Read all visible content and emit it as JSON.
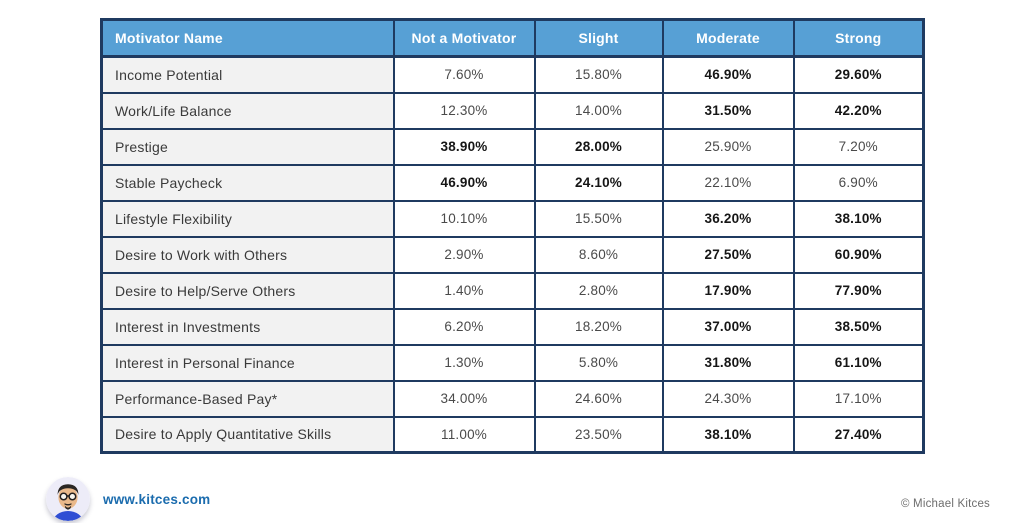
{
  "chart_data": {
    "type": "table",
    "columns": [
      "Motivator Name",
      "Not a Motivator",
      "Slight",
      "Moderate",
      "Strong"
    ],
    "rows": [
      {
        "motivator": "Income Potential",
        "values": [
          "7.60%",
          "15.80%",
          "46.90%",
          "29.60%"
        ],
        "bold": [
          false,
          false,
          true,
          true
        ]
      },
      {
        "motivator": "Work/Life Balance",
        "values": [
          "12.30%",
          "14.00%",
          "31.50%",
          "42.20%"
        ],
        "bold": [
          false,
          false,
          true,
          true
        ]
      },
      {
        "motivator": "Prestige",
        "values": [
          "38.90%",
          "28.00%",
          "25.90%",
          "7.20%"
        ],
        "bold": [
          true,
          true,
          false,
          false
        ]
      },
      {
        "motivator": "Stable Paycheck",
        "values": [
          "46.90%",
          "24.10%",
          "22.10%",
          "6.90%"
        ],
        "bold": [
          true,
          true,
          false,
          false
        ]
      },
      {
        "motivator": "Lifestyle Flexibility",
        "values": [
          "10.10%",
          "15.50%",
          "36.20%",
          "38.10%"
        ],
        "bold": [
          false,
          false,
          true,
          true
        ]
      },
      {
        "motivator": "Desire to Work with Others",
        "values": [
          "2.90%",
          "8.60%",
          "27.50%",
          "60.90%"
        ],
        "bold": [
          false,
          false,
          true,
          true
        ]
      },
      {
        "motivator": "Desire to Help/Serve Others",
        "values": [
          "1.40%",
          "2.80%",
          "17.90%",
          "77.90%"
        ],
        "bold": [
          false,
          false,
          true,
          true
        ]
      },
      {
        "motivator": "Interest in Investments",
        "values": [
          "6.20%",
          "18.20%",
          "37.00%",
          "38.50%"
        ],
        "bold": [
          false,
          false,
          true,
          true
        ]
      },
      {
        "motivator": "Interest in Personal Finance",
        "values": [
          "1.30%",
          "5.80%",
          "31.80%",
          "61.10%"
        ],
        "bold": [
          false,
          false,
          true,
          true
        ]
      },
      {
        "motivator": "Performance-Based Pay*",
        "values": [
          "34.00%",
          "24.60%",
          "24.30%",
          "17.10%"
        ],
        "bold": [
          false,
          false,
          false,
          false
        ]
      },
      {
        "motivator": "Desire to Apply Quantitative Skills",
        "values": [
          "11.00%",
          "23.50%",
          "38.10%",
          "27.40%"
        ],
        "bold": [
          false,
          false,
          true,
          true
        ]
      }
    ]
  },
  "footer": {
    "site_link": "www.kitces.com",
    "copyright": "© Michael Kitces",
    "avatar_icon": "kitces-avatar"
  },
  "colors": {
    "header_bg": "#57a0d5",
    "table_border": "#1f3a60",
    "label_cell_bg": "#f2f2f2",
    "link_blue": "#1b6cae",
    "copyright_gray": "#6d6d6d"
  }
}
